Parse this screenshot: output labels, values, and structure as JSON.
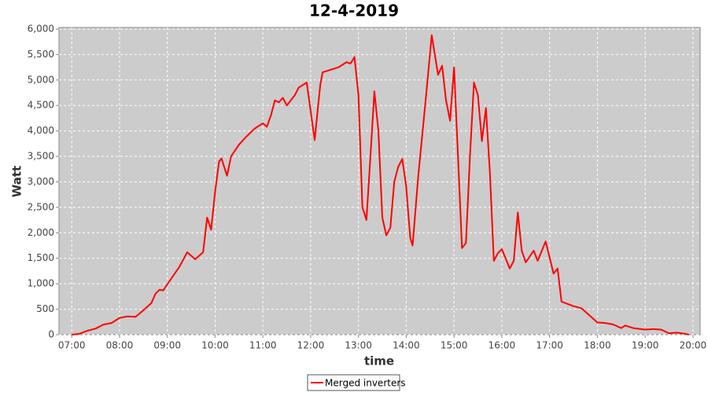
{
  "chart_data": {
    "type": "line",
    "title": "12-4-2019",
    "x_label": "time",
    "y_label": "Watt",
    "x": [
      "07:00",
      "07:10",
      "07:20",
      "07:30",
      "07:40",
      "07:50",
      "08:00",
      "08:10",
      "08:20",
      "08:30",
      "08:40",
      "08:45",
      "08:50",
      "08:55",
      "09:00",
      "09:15",
      "09:25",
      "09:35",
      "09:45",
      "09:50",
      "09:55",
      "10:00",
      "10:05",
      "10:08",
      "10:15",
      "10:20",
      "10:30",
      "10:40",
      "10:50",
      "11:00",
      "11:05",
      "11:10",
      "11:15",
      "11:20",
      "11:25",
      "11:30",
      "11:40",
      "11:45",
      "11:55",
      "12:05",
      "12:12",
      "12:15",
      "12:25",
      "12:35",
      "12:45",
      "12:50",
      "12:55",
      "13:00",
      "13:05",
      "13:10",
      "13:15",
      "13:20",
      "13:25",
      "13:30",
      "13:35",
      "13:40",
      "13:45",
      "13:50",
      "13:55",
      "14:00",
      "14:05",
      "14:08",
      "14:15",
      "14:25",
      "14:32",
      "14:40",
      "14:45",
      "14:50",
      "14:55",
      "15:00",
      "15:05",
      "15:10",
      "15:15",
      "15:20",
      "15:25",
      "15:30",
      "15:35",
      "15:40",
      "15:45",
      "15:50",
      "15:55",
      "16:00",
      "16:10",
      "16:15",
      "16:20",
      "16:25",
      "16:30",
      "16:40",
      "16:45",
      "16:55",
      "17:05",
      "17:10",
      "17:15",
      "17:20",
      "17:30",
      "17:40",
      "17:50",
      "18:00",
      "18:10",
      "18:20",
      "18:30",
      "18:35",
      "18:45",
      "19:00",
      "19:10",
      "19:20",
      "19:30",
      "19:40",
      "19:50",
      "19:55"
    ],
    "series": [
      {
        "name": "Merged inverters",
        "color": "#ff0000",
        "values": [
          0,
          20,
          80,
          120,
          200,
          230,
          330,
          360,
          350,
          480,
          620,
          800,
          880,
          870,
          990,
          1330,
          1620,
          1480,
          1620,
          2300,
          2060,
          2800,
          3400,
          3460,
          3120,
          3500,
          3730,
          3900,
          4050,
          4150,
          4080,
          4300,
          4600,
          4560,
          4650,
          4500,
          4700,
          4850,
          4950,
          3820,
          4900,
          5150,
          5200,
          5250,
          5350,
          5320,
          5450,
          4700,
          2500,
          2250,
          3500,
          4780,
          4000,
          2300,
          1950,
          2100,
          3000,
          3300,
          3450,
          2900,
          1900,
          1750,
          3100,
          4700,
          5880,
          5100,
          5280,
          4600,
          4200,
          5250,
          3500,
          1700,
          1800,
          3500,
          4950,
          4700,
          3800,
          4450,
          3200,
          1450,
          1600,
          1680,
          1300,
          1450,
          2400,
          1650,
          1420,
          1650,
          1450,
          1830,
          1200,
          1300,
          650,
          620,
          560,
          520,
          380,
          240,
          230,
          200,
          130,
          180,
          130,
          100,
          110,
          100,
          30,
          40,
          20,
          0
        ]
      }
    ],
    "xlim": [
      "06:44",
      "20:09"
    ],
    "xticks": [
      "07:00",
      "08:00",
      "09:00",
      "10:00",
      "11:00",
      "12:00",
      "13:00",
      "14:00",
      "15:00",
      "16:00",
      "17:00",
      "18:00",
      "19:00",
      "20:00"
    ],
    "ylim": [
      0,
      6030
    ],
    "yticks": [
      0,
      500,
      {
        "value": 1000,
        "label": "1,000"
      },
      {
        "value": 1500,
        "label": "1,500"
      },
      {
        "value": 2000,
        "label": "2,000"
      },
      {
        "value": 2500,
        "label": "2,500"
      },
      {
        "value": 3000,
        "label": "3,000"
      },
      {
        "value": 3500,
        "label": "3,500"
      },
      {
        "value": 4000,
        "label": "4,000"
      },
      {
        "value": 4500,
        "label": "4,500"
      },
      {
        "value": 5000,
        "label": "5,000"
      },
      {
        "value": 5500,
        "label": "5,500"
      },
      {
        "value": 6000,
        "label": "6,000"
      }
    ],
    "grid": true,
    "legend": "bottom"
  }
}
